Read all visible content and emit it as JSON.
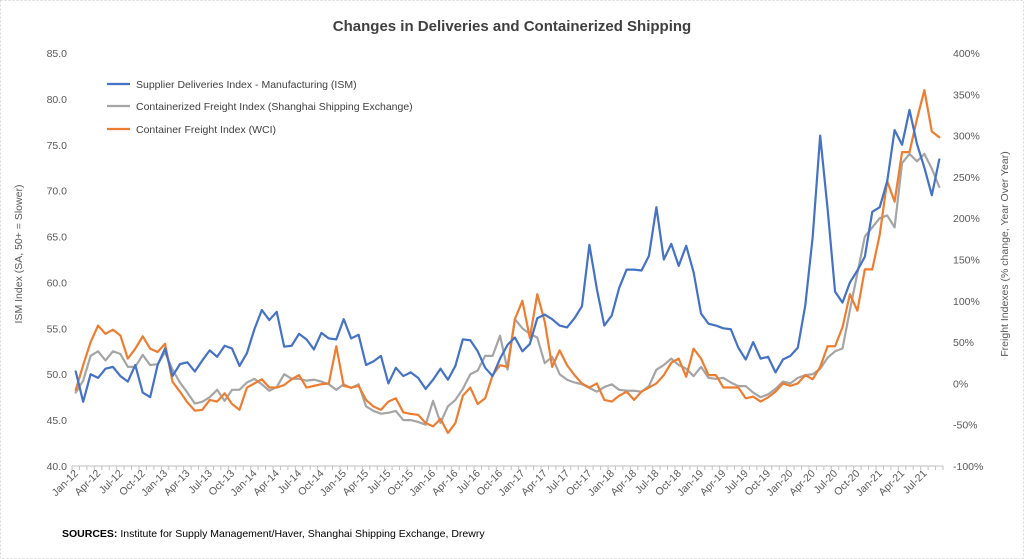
{
  "chart_data": {
    "type": "line",
    "title": "Changes in Deliveries and Containerized Shipping",
    "y_left_label": "ISM Index (SA, 50+ = Slower)",
    "y_right_label": "Freight Indexes (% change, Year Over Year)",
    "y_left_range": [
      40,
      85
    ],
    "y_right_range": [
      -100,
      400
    ],
    "y_left_ticks": [
      "40.0",
      "45.0",
      "50.0",
      "55.0",
      "60.0",
      "65.0",
      "70.0",
      "75.0",
      "80.0",
      "85.0"
    ],
    "y_right_ticks": [
      "-100%",
      "-50%",
      "0%",
      "50%",
      "100%",
      "150%",
      "200%",
      "250%",
      "300%",
      "350%",
      "400%"
    ],
    "x_tick_labels": [
      "Jan-12",
      "Apr-12",
      "Jul-12",
      "Oct-12",
      "Jan-13",
      "Apr-13",
      "Jul-13",
      "Oct-13",
      "Jan-14",
      "Apr-14",
      "Jul-14",
      "Oct-14",
      "Jan-15",
      "Apr-15",
      "Jul-15",
      "Oct-15",
      "Jan-16",
      "Apr-16",
      "Jul-16",
      "Oct-16",
      "Jan-17",
      "Apr-17",
      "Jul-17",
      "Oct-17",
      "Jan-18",
      "Apr-18",
      "Jul-18",
      "Oct-18",
      "Jan-19",
      "Apr-19",
      "Jul-19",
      "Oct-19",
      "Jan-20",
      "Apr-20",
      "Jul-20",
      "Oct-20",
      "Jan-21",
      "Apr-21",
      "Jul-21"
    ],
    "series": [
      {
        "name": "Supplier Deliveries Index - Manufacturing (ISM)",
        "axis": "left",
        "color": "#4472C4",
        "values": [
          50.3,
          47.0,
          50.0,
          49.6,
          50.6,
          50.8,
          49.8,
          49.2,
          51.0,
          48.0,
          47.5,
          51.0,
          52.8,
          49.8,
          51.1,
          51.3,
          50.3,
          51.5,
          52.6,
          51.9,
          53.1,
          52.8,
          50.9,
          52.3,
          54.9,
          57.0,
          55.9,
          56.8,
          53.0,
          53.1,
          54.4,
          53.8,
          52.7,
          54.5,
          53.9,
          53.8,
          56.0,
          53.9,
          54.3,
          51.0,
          51.4,
          52.0,
          49.0,
          50.7,
          49.8,
          50.2,
          49.6,
          48.4,
          49.4,
          50.6,
          49.4,
          50.9,
          53.8,
          53.7,
          52.5,
          50.7,
          49.8,
          51.7,
          53.2,
          54.0,
          52.5,
          53.3,
          56.1,
          56.5,
          56.0,
          55.3,
          55.1,
          56.1,
          57.4,
          64.1,
          59.3,
          55.3,
          56.4,
          59.4,
          61.4,
          61.4,
          61.3,
          62.9,
          68.2,
          62.5,
          64.2,
          61.8,
          64.0,
          61.1,
          56.6,
          55.5,
          55.3,
          55.0,
          54.9,
          52.9,
          51.6,
          53.5,
          51.7,
          51.9,
          50.2,
          51.6,
          52.0,
          52.9,
          57.5,
          65.0,
          76.0,
          68.0,
          59.0,
          57.8,
          60.0,
          61.3,
          62.8,
          67.7,
          68.2,
          71.0,
          76.6,
          75.0,
          78.8,
          75.1,
          72.5,
          69.5,
          73.4
        ]
      },
      {
        "name": "Containerized Freight Index (Shanghai Shipping Exchange)",
        "axis": "left",
        "color": "#A5A5A5",
        "values": [
          48.0,
          49.3,
          52.0,
          52.5,
          51.5,
          52.5,
          52.2,
          50.8,
          50.8,
          52.1,
          51.0,
          51.1,
          52.4,
          50.5,
          49.1,
          48.0,
          46.8,
          47.0,
          47.5,
          48.3,
          47.1,
          48.3,
          48.3,
          49.1,
          49.5,
          48.9,
          48.2,
          48.6,
          50.0,
          49.5,
          49.5,
          49.3,
          49.4,
          49.2,
          48.9,
          48.3,
          48.9,
          48.5,
          48.9,
          46.5,
          46.0,
          45.7,
          45.8,
          46.0,
          45.0,
          45.0,
          44.8,
          44.5,
          47.1,
          44.7,
          46.5,
          47.2,
          48.4,
          50.0,
          50.4,
          52.0,
          52.0,
          54.2,
          50.5,
          56.0,
          55.0,
          54.4,
          54.0,
          51.2,
          51.9,
          50.0,
          49.4,
          49.1,
          48.9,
          48.5,
          48.1,
          48.6,
          48.9,
          48.3,
          48.2,
          48.2,
          48.1,
          48.7,
          50.5,
          51.0,
          51.7,
          51.0,
          50.6,
          49.8,
          50.8,
          49.6,
          49.5,
          49.6,
          49.1,
          48.7,
          48.7,
          48.0,
          47.5,
          47.8,
          48.4,
          49.2,
          49.0,
          49.6,
          49.9,
          50.0,
          50.6,
          51.8,
          52.5,
          52.8,
          57.0,
          61.0,
          65.0,
          66.0,
          67.0,
          67.3,
          66.0,
          73.0,
          74.0,
          73.2,
          74.0,
          72.4,
          70.4
        ]
      },
      {
        "name": "Container Freight Index (WCI)",
        "axis": "right",
        "color": "#ED7D31",
        "values": [
          -8,
          22,
          50,
          70,
          60,
          65,
          58,
          30,
          42,
          57,
          42,
          38,
          48,
          2,
          -10,
          -23,
          -33,
          -32,
          -20,
          -22,
          -12,
          -25,
          -32,
          -5,
          0,
          5,
          -5,
          -5,
          -2,
          5,
          10,
          -5,
          -3,
          -1,
          0,
          45,
          -3,
          -5,
          -3,
          -20,
          -28,
          -32,
          -22,
          -18,
          -35,
          -37,
          -38,
          -48,
          -52,
          -43,
          -60,
          -48,
          -15,
          -5,
          -25,
          -18,
          10,
          22,
          20,
          78,
          100,
          55,
          108,
          75,
          20,
          40,
          22,
          10,
          0,
          -5,
          0,
          -20,
          -22,
          -15,
          -10,
          -20,
          -10,
          -5,
          0,
          10,
          25,
          30,
          8,
          42,
          30,
          10,
          10,
          -5,
          -5,
          -5,
          -18,
          -16,
          -22,
          -17,
          -10,
          0,
          -3,
          0,
          10,
          5,
          20,
          45,
          45,
          68,
          108,
          88,
          138,
          138,
          180,
          245,
          220,
          280,
          280,
          320,
          355,
          305,
          298
        ]
      }
    ],
    "legend": [
      {
        "label": "Supplier Deliveries Index - Manufacturing (ISM)",
        "color": "#4472C4"
      },
      {
        "label": "Containerized Freight Index (Shanghai Shipping Exchange)",
        "color": "#A5A5A5"
      },
      {
        "label": "Container Freight Index (WCI)",
        "color": "#ED7D31"
      }
    ],
    "legend_position": "top-left",
    "grid": false
  },
  "sources": {
    "label": "SOURCES:",
    "text": " Institute for Supply Management/Haver, Shanghai Shipping Exchange, Drewry"
  }
}
